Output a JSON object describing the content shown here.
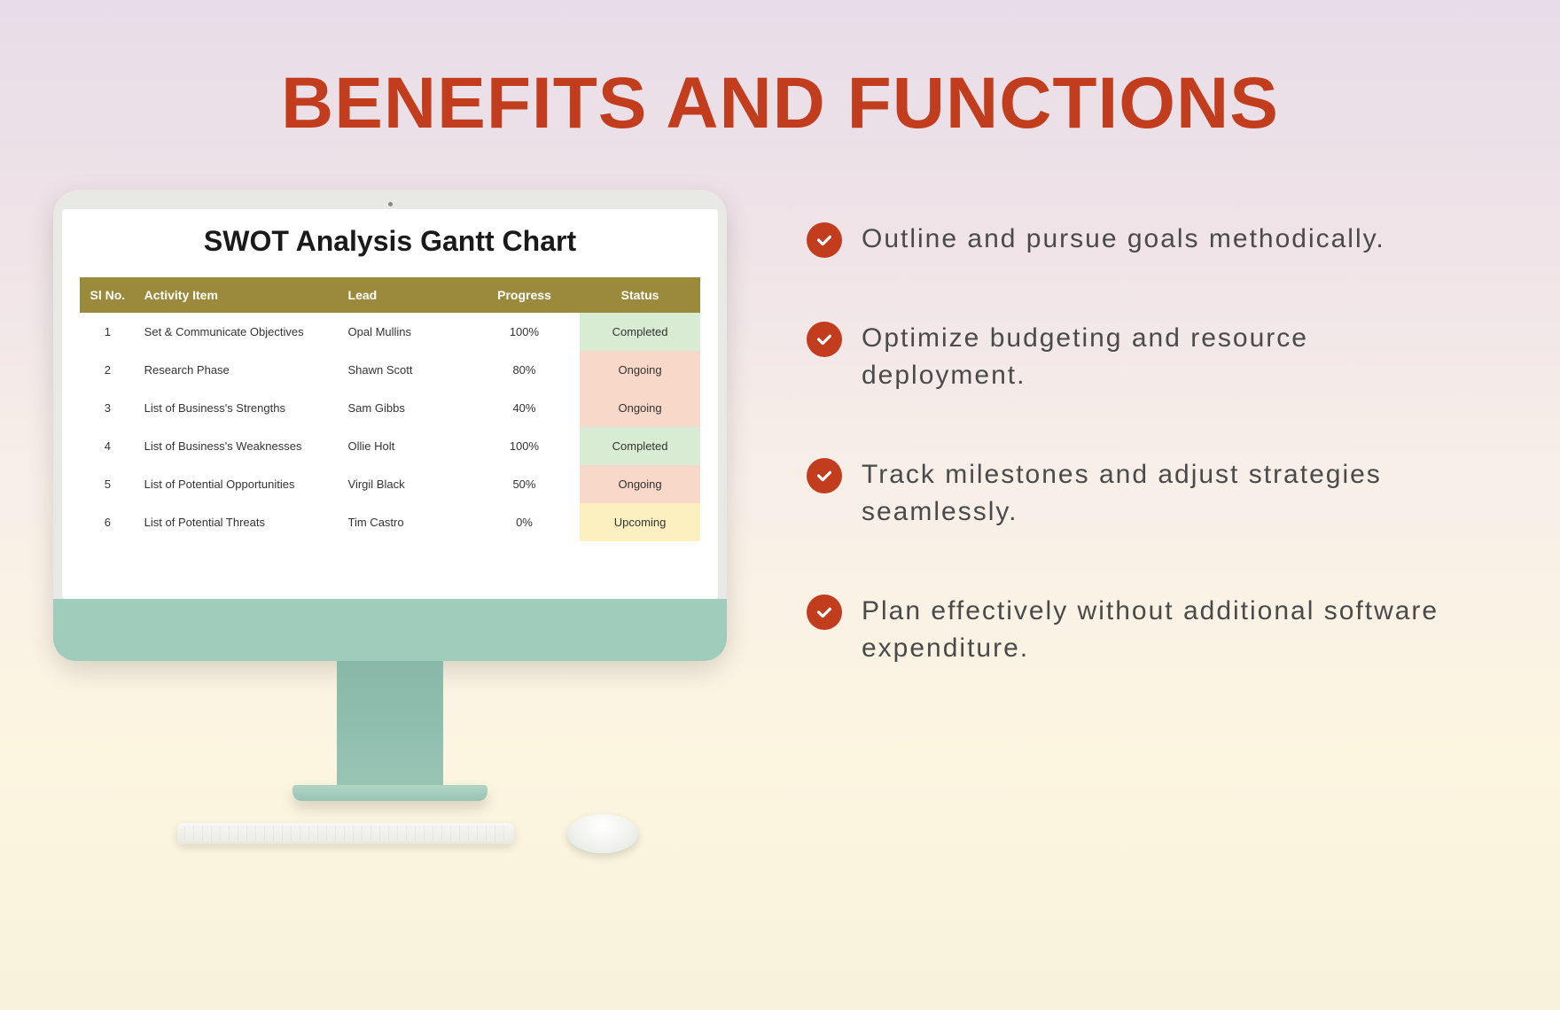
{
  "heading": "BENEFITS AND FUNCTIONS",
  "colors": {
    "heading": "#c13d1e",
    "table_header_bg": "#9c8a3c",
    "table_header_fg": "#ffffff",
    "status_completed_bg": "#d8ecd4",
    "status_ongoing_bg": "#f8d8c8",
    "status_upcoming_bg": "#fcf0c0",
    "check_bg": "#c13d1e",
    "benefit_text": "#4a4a4a",
    "monitor_chin": "#a0ccbc",
    "background_gradient": [
      "#e8dce8",
      "#f0e4e8",
      "#f8f0e8",
      "#fcf5e0",
      "#f8f2dc"
    ]
  },
  "typography": {
    "heading_fontsize": 82,
    "heading_weight": 800,
    "benefit_fontsize": 30,
    "benefit_letter_spacing": 2,
    "screen_title_fontsize": 32,
    "table_fontsize": 14
  },
  "screen": {
    "title": "SWOT Analysis Gantt Chart",
    "columns": [
      {
        "key": "slno",
        "label": "Sl No."
      },
      {
        "key": "activity",
        "label": "Activity Item"
      },
      {
        "key": "lead",
        "label": "Lead"
      },
      {
        "key": "progress",
        "label": "Progress"
      },
      {
        "key": "status",
        "label": "Status"
      }
    ],
    "rows": [
      {
        "slno": "1",
        "activity": "Set & Communicate Objectives",
        "lead": "Opal Mullins",
        "progress": "100%",
        "status": "Completed",
        "status_class": "completed"
      },
      {
        "slno": "2",
        "activity": "Research Phase",
        "lead": "Shawn Scott",
        "progress": "80%",
        "status": "Ongoing",
        "status_class": "ongoing"
      },
      {
        "slno": "3",
        "activity": "List of Business's Strengths",
        "lead": "Sam Gibbs",
        "progress": "40%",
        "status": "Ongoing",
        "status_class": "ongoing"
      },
      {
        "slno": "4",
        "activity": "List of Business's Weaknesses",
        "lead": "Ollie Holt",
        "progress": "100%",
        "status": "Completed",
        "status_class": "completed"
      },
      {
        "slno": "5",
        "activity": "List of Potential Opportunities",
        "lead": "Virgil Black",
        "progress": "50%",
        "status": "Ongoing",
        "status_class": "ongoing"
      },
      {
        "slno": "6",
        "activity": "List of Potential Threats",
        "lead": "Tim Castro",
        "progress": "0%",
        "status": "Upcoming",
        "status_class": "upcoming"
      }
    ]
  },
  "benefits": [
    {
      "text": "Outline and pursue goals methodically."
    },
    {
      "text": "Optimize budgeting and resource deployment."
    },
    {
      "text": "Track milestones and adjust strategies seamlessly."
    },
    {
      "text": "Plan effectively without additional software expenditure."
    }
  ]
}
